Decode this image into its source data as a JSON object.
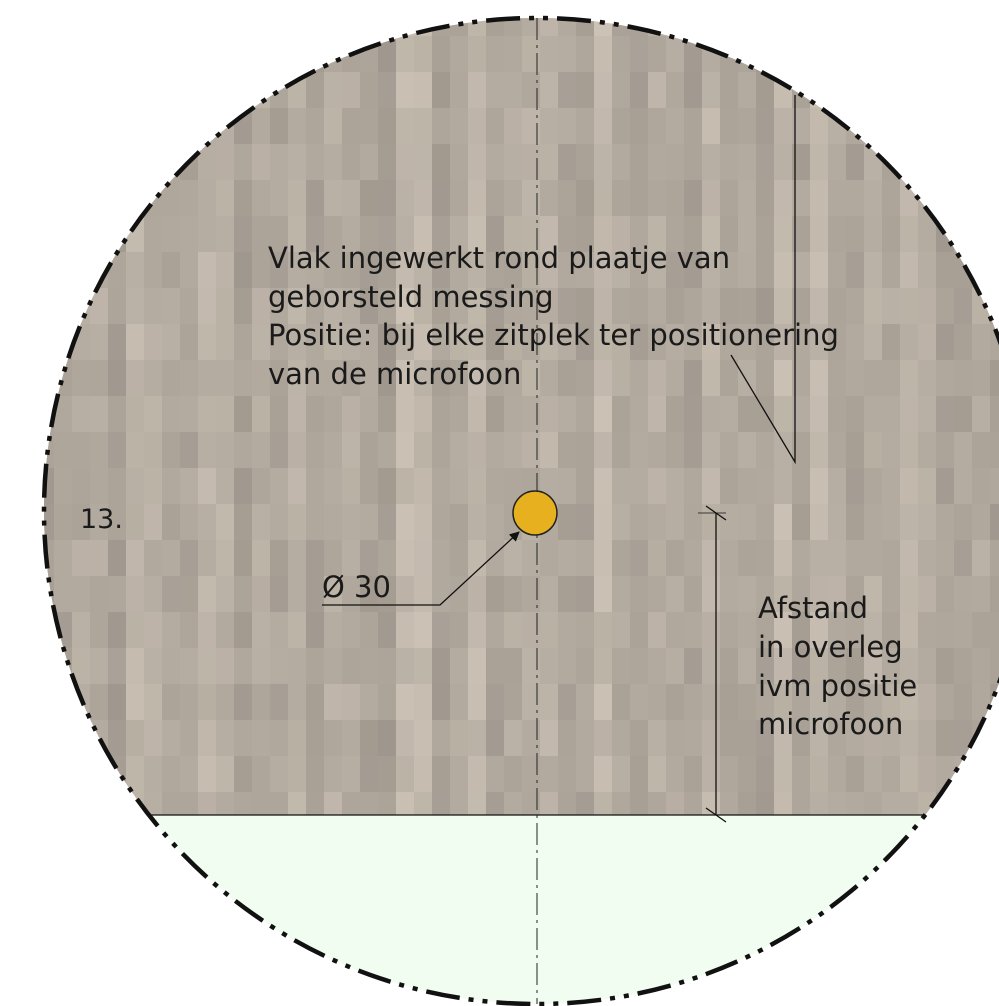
{
  "detail": {
    "number": "13.",
    "note_lines": [
      "Vlak ingewerkt rond plaatje van",
      "geborsteld messing",
      "Positie: bij elke zitplek ter positionering",
      "van de microfoon"
    ],
    "diameter_label": "Ø 30",
    "distance_lines": [
      "Afstand",
      "in overleg",
      "ivm positie",
      "microfoon"
    ]
  },
  "colors": {
    "wood_base": "#b5aca2",
    "lower_area": "#f0fdf0",
    "brass_plate": "#e6b01e",
    "line": "#111111"
  }
}
